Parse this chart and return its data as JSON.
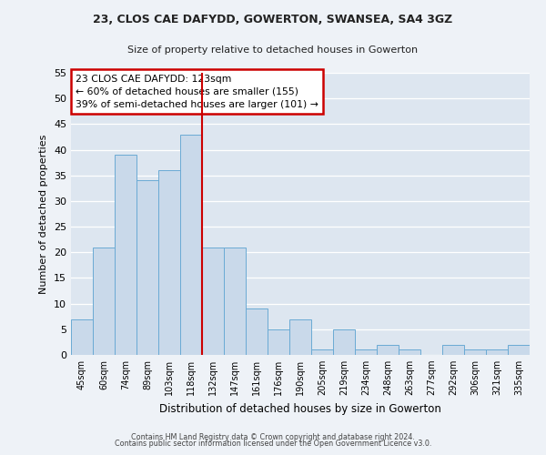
{
  "title1": "23, CLOS CAE DAFYDD, GOWERTON, SWANSEA, SA4 3GZ",
  "title2": "Size of property relative to detached houses in Gowerton",
  "xlabel": "Distribution of detached houses by size in Gowerton",
  "ylabel": "Number of detached properties",
  "bin_labels": [
    "45sqm",
    "60sqm",
    "74sqm",
    "89sqm",
    "103sqm",
    "118sqm",
    "132sqm",
    "147sqm",
    "161sqm",
    "176sqm",
    "190sqm",
    "205sqm",
    "219sqm",
    "234sqm",
    "248sqm",
    "263sqm",
    "277sqm",
    "292sqm",
    "306sqm",
    "321sqm",
    "335sqm"
  ],
  "bar_values": [
    7,
    21,
    39,
    34,
    36,
    43,
    21,
    21,
    9,
    5,
    7,
    1,
    5,
    1,
    2,
    1,
    0,
    2,
    1,
    1,
    2
  ],
  "bar_color": "#c9d9ea",
  "bar_edge_color": "#6aaad4",
  "vline_x": 5.5,
  "vline_color": "#cc0000",
  "ylim": [
    0,
    55
  ],
  "yticks": [
    0,
    5,
    10,
    15,
    20,
    25,
    30,
    35,
    40,
    45,
    50,
    55
  ],
  "annotation_title": "23 CLOS CAE DAFYDD: 123sqm",
  "annotation_line1": "← 60% of detached houses are smaller (155)",
  "annotation_line2": "39% of semi-detached houses are larger (101) →",
  "annotation_box_color": "#ffffff",
  "annotation_box_edge": "#cc0000",
  "footer1": "Contains HM Land Registry data © Crown copyright and database right 2024.",
  "footer2": "Contains public sector information licensed under the Open Government Licence v3.0.",
  "bg_color": "#eef2f7",
  "plot_bg_color": "#dde6f0"
}
